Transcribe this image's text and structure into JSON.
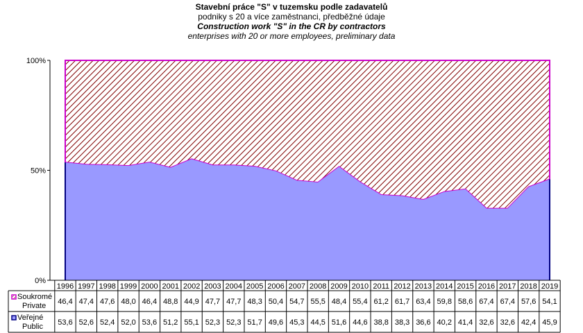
{
  "titles": {
    "line1": "Stavební práce \"S\" v tuzemsku podle zadavatelů",
    "line2": "podniky s 20 a více zaměstnanci, předběžné údaje",
    "line3": "Construction work \"S\" in the CR by contractors",
    "line4": "enterprises with 20 or more employees, preliminary data"
  },
  "chart_data": {
    "type": "area",
    "stacked": true,
    "percent": true,
    "categories": [
      "1996",
      "1997",
      "1998",
      "1999",
      "2000",
      "2001",
      "2002",
      "2003",
      "2004",
      "2005",
      "2006",
      "2007",
      "2008",
      "2009",
      "2010",
      "2011",
      "2012",
      "2013",
      "2014",
      "2015",
      "2016",
      "2017",
      "2018",
      "2019"
    ],
    "y_ticks": [
      "0%",
      "50%",
      "100%"
    ],
    "ylim": [
      0,
      100
    ],
    "grid": false,
    "series": [
      {
        "name": "Soukromé Private",
        "name_lines": [
          "Soukromé",
          "Private"
        ],
        "color": "#cc00cc",
        "pattern": "hatch",
        "values": [
          46.4,
          47.4,
          47.6,
          48.0,
          46.4,
          48.8,
          44.9,
          47.7,
          47.7,
          48.3,
          50.4,
          54.7,
          55.5,
          48.4,
          55.4,
          61.2,
          61.7,
          63.4,
          59.8,
          58.6,
          67.4,
          67.4,
          57.6,
          54.1
        ],
        "labels": [
          "46,4",
          "47,4",
          "47,6",
          "48,0",
          "46,4",
          "48,8",
          "44,9",
          "47,7",
          "47,7",
          "48,3",
          "50,4",
          "54,7",
          "55,5",
          "48,4",
          "55,4",
          "61,2",
          "61,7",
          "63,4",
          "59,8",
          "58,6",
          "67,4",
          "67,4",
          "57,6",
          "54,1"
        ]
      },
      {
        "name": "Veřejné Public",
        "name_lines": [
          "Veřejné",
          "Public"
        ],
        "color": "#9999ff",
        "edge_color": "#000080",
        "values": [
          53.6,
          52.6,
          52.4,
          52.0,
          53.6,
          51.2,
          55.1,
          52.3,
          52.3,
          51.7,
          49.6,
          45.3,
          44.5,
          51.6,
          44.6,
          38.8,
          38.3,
          36.6,
          40.2,
          41.4,
          32.6,
          32.6,
          42.4,
          45.9
        ],
        "labels": [
          "53,6",
          "52,6",
          "52,4",
          "52,0",
          "53,6",
          "51,2",
          "55,1",
          "52,3",
          "52,3",
          "51,7",
          "49,6",
          "45,3",
          "44,5",
          "51,6",
          "44,6",
          "38,8",
          "38,3",
          "36,6",
          "40,2",
          "41,4",
          "32,6",
          "32,6",
          "42,4",
          "45,9"
        ]
      }
    ]
  }
}
